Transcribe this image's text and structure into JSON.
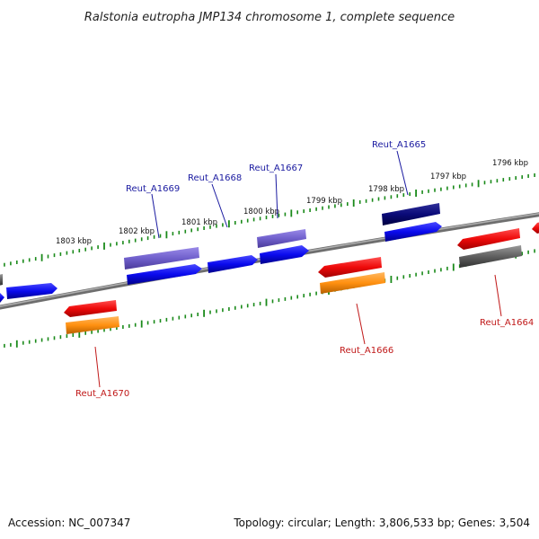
{
  "title": "Ralstonia eutropha JMP134 chromosome 1, complete sequence",
  "footer": {
    "accession": "Accession: NC_007347",
    "topology": "Topology: circular; Length: 3,806,533 bp; Genes: 3,504"
  },
  "kbp_labels": [
    "1796 kbp",
    "1797 kbp",
    "1798 kbp",
    "1799 kbp",
    "1800 kbp",
    "1801 kbp",
    "1802 kbp",
    "1803 kbp"
  ],
  "gene_labels": {
    "A1665": "Reut_A1665",
    "A1667": "Reut_A1667",
    "A1668": "Reut_A1668",
    "A1669": "Reut_A1669",
    "A1664": "Reut_A1664",
    "A1666": "Reut_A1666",
    "A1670": "Reut_A1670"
  },
  "colors": {
    "backbone": "#808080",
    "tick": "#1a8a1a",
    "gene_blue": "#0a0aee",
    "gene_navy": "#0a0a78",
    "gene_purple": "#7060cc",
    "gene_red": "#ee0a0a",
    "gene_orange": "#ff9010",
    "gene_gray": "#606060"
  }
}
